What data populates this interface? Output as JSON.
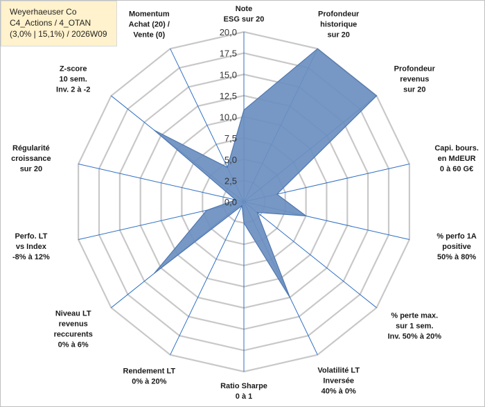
{
  "title_box": {
    "line1": "Weyerhaeuser Co",
    "line2": "C4_Actions / 4_OTAN",
    "line3": "(3,0% | 15,1%) / 2026W09"
  },
  "colors": {
    "fill": "#6b8fc0",
    "fill_stroke": "#4f77b0",
    "spokes": "#2e6fc4",
    "grid": "#c8c8c8"
  },
  "chart_data": {
    "type": "radar",
    "rmax": 20,
    "tick_labels": [
      "0,0",
      "2,5",
      "5,0",
      "7,5",
      "10,0",
      "12,5",
      "15,0",
      "17,5",
      "20,0"
    ],
    "ticks": [
      0,
      2.5,
      5,
      7.5,
      10,
      12.5,
      15,
      17.5,
      20
    ],
    "grid": true,
    "axes": [
      {
        "label": [
          "Note",
          "ESG sur 20"
        ],
        "value": 10.8
      },
      {
        "label": [
          "Profondeur",
          "historique",
          "sur 20"
        ],
        "value": 20
      },
      {
        "label": [
          "Profondeur",
          "revenus",
          "sur 20"
        ],
        "value": 20
      },
      {
        "label": [
          "Capi. bours.",
          "en MdEUR",
          "0 à 60 G€"
        ],
        "value": 4.0
      },
      {
        "label": [
          "% perfo 1A",
          "positive",
          "50% à 80%"
        ],
        "value": 7.5
      },
      {
        "label": [
          "% perte max.",
          "sur 1 sem.",
          "Inv. 50% à 20%"
        ],
        "value": 2.0
      },
      {
        "label": [
          "Volatilité LT",
          "Inversée",
          "40% à 0%"
        ],
        "value": 12.5
      },
      {
        "label": [
          "Ratio Sharpe",
          "0 à 1"
        ],
        "value": 2.5
      },
      {
        "label": [
          "Rendement LT",
          "0% à 20%"
        ],
        "value": 0.5
      },
      {
        "label": [
          "Niveau LT",
          "revenus",
          "reccurents",
          "0% à 6%"
        ],
        "value": 13.5
      },
      {
        "label": [
          "Perfo. LT",
          "vs Index",
          "-8% à 12%"
        ],
        "value": 4.5
      },
      {
        "label": [
          "Régularité",
          "croissance",
          "sur 20"
        ],
        "value": 1.0
      },
      {
        "label": [
          "Z-score",
          "10 sem.",
          "Inv. 2 à -2"
        ],
        "value": 13.5
      },
      {
        "label": [
          "Momentum",
          "Achat (20) /",
          "Vente (0)"
        ],
        "value": 4.5
      }
    ]
  }
}
